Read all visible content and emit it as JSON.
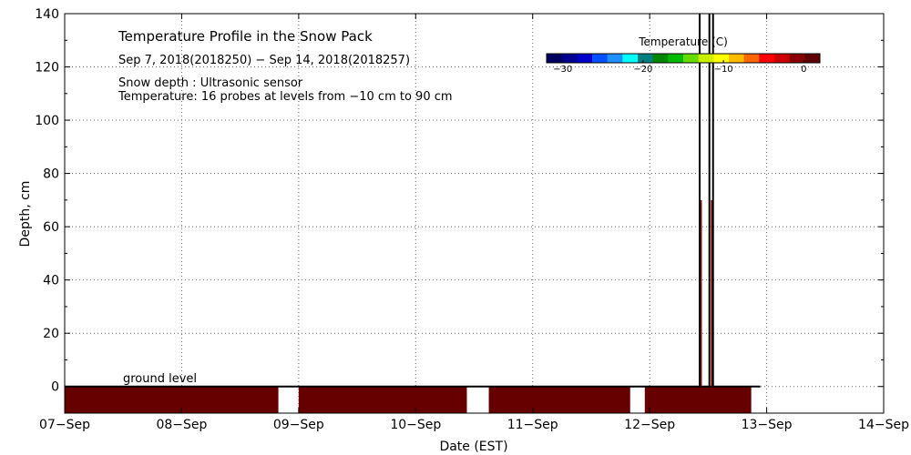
{
  "chart_data": {
    "type": "heatmap",
    "title": "Temperature Profile in the Snow Pack",
    "subtitle": "Sep  7, 2018(2018250) − Sep 14, 2018(2018257)",
    "notes": [
      "Snow depth : Ultrasonic sensor",
      "Temperature: 16 probes at levels from −10 cm to 90 cm"
    ],
    "xlabel": "Date (EST)",
    "ylabel": "Depth, cm",
    "x_axis": {
      "start": "2018-09-07",
      "end": "2018-09-14",
      "ticks": [
        "07−Sep",
        "08−Sep",
        "09−Sep",
        "10−Sep",
        "11−Sep",
        "12−Sep",
        "13−Sep",
        "14−Sep"
      ],
      "grid": true
    },
    "y_axis": {
      "ylim": [
        -10,
        140
      ],
      "ticks": [
        0,
        20,
        40,
        60,
        80,
        100,
        120,
        140
      ],
      "grid": true
    },
    "ground_label": "ground level",
    "ground_level": 0,
    "soil_band": {
      "depth_range": [
        -10,
        0
      ],
      "color": "#660000",
      "segments": [
        [
          "2018-09-07 00:00",
          "2018-09-08 19:50"
        ],
        [
          "2018-09-09 00:00",
          "2018-09-10 10:30"
        ],
        [
          "2018-09-10 15:00",
          "2018-09-11 20:00"
        ],
        [
          "2018-09-11 23:00",
          "2018-09-12 20:50"
        ]
      ]
    },
    "snow_depth_spikes": [
      {
        "time": "2018-09-12 10:15",
        "depth": 140
      },
      {
        "time": "2018-09-12 12:15",
        "depth": 140
      },
      {
        "time": "2018-09-12 13:00",
        "depth": 140
      }
    ],
    "probe_readings": [
      {
        "time": "2018-09-12 10:20",
        "depth_top": 70,
        "color": "#8b0000"
      },
      {
        "time": "2018-09-12 12:45",
        "depth_top": 70,
        "color": "#8b0000"
      }
    ],
    "colorbar": {
      "title": "Temperature (C)",
      "range": [
        -32,
        2
      ],
      "tick_values": [
        -30,
        -20,
        -10,
        0
      ],
      "tick_labels": [
        "−30",
        "−20",
        "−10",
        "0"
      ],
      "colors": [
        "#000060",
        "#000090",
        "#0000cc",
        "#0050ff",
        "#1e90ff",
        "#00ffff",
        "#008080",
        "#008800",
        "#00bb00",
        "#66dd00",
        "#ccee00",
        "#ffff00",
        "#ffbb00",
        "#ff6600",
        "#ff0000",
        "#cc0000",
        "#880000",
        "#600000"
      ]
    }
  }
}
